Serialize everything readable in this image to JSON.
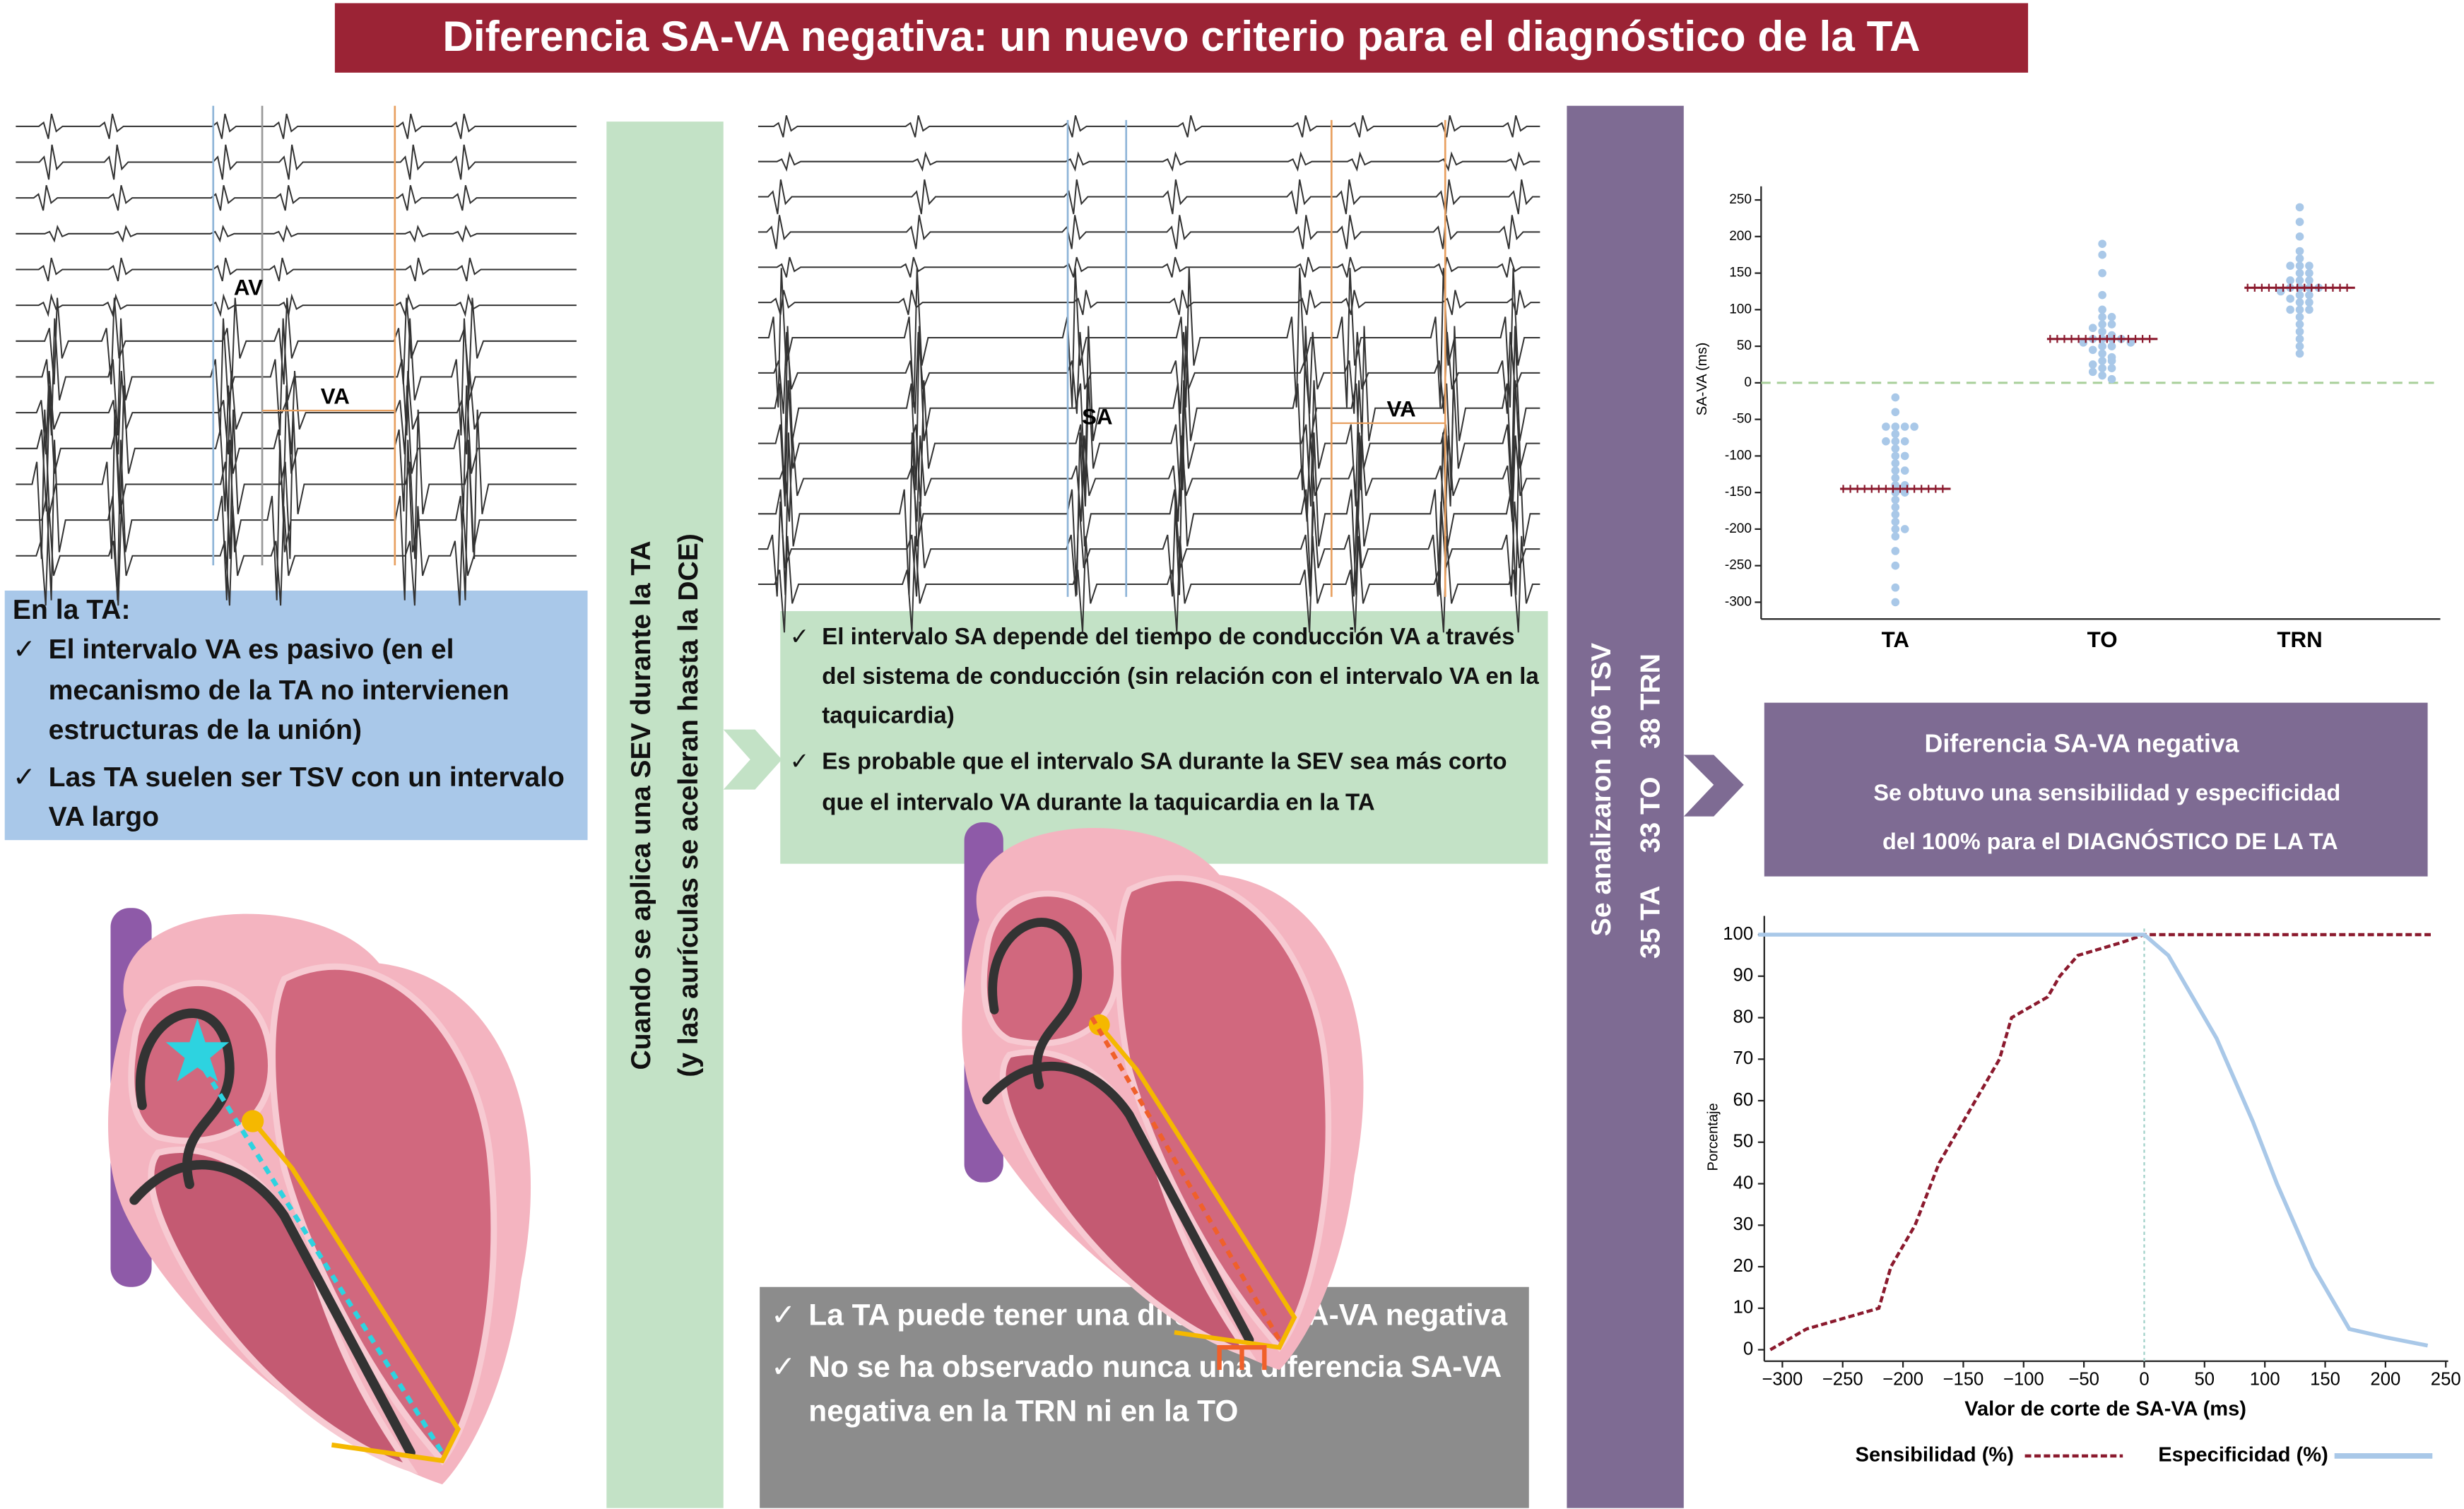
{
  "header": {
    "title": "Diferencia SA-VA negativa: un nuevo criterio para el diagnóstico de la TA"
  },
  "check": "✓",
  "ecg_left": {
    "labels": [
      "AV",
      "VA"
    ]
  },
  "ecg_middle": {
    "labels": [
      "SA",
      "VA"
    ]
  },
  "box_ta": {
    "title": "En la TA:",
    "items": [
      "El intervalo VA es pasivo (en el mecanismo de la TA no intervienen estructuras de la unión)",
      "Las TA suelen ser TSV con un intervalo VA largo"
    ]
  },
  "sev_column": {
    "lines": [
      "Cuando se aplica una SEV durante la TA",
      "(y las aurículas se aceleran hasta la DCE)"
    ]
  },
  "box_sa": {
    "items": [
      "El intervalo SA depende del tiempo de conducción VA a través del sistema de conducción (sin relación con el intervalo VA en la taquicardia)",
      "Es probable que el intervalo SA durante la SEV sea más corto que el intervalo VA durante la taquicardia en la TA"
    ]
  },
  "box_conclusion": {
    "items": [
      "La TA puede tener una diferencia SA-VA negativa",
      "No se ha observado nunca una diferencia SA-VA negativa en la TRN ni en la TO"
    ]
  },
  "study_column": {
    "title": "Se analizaron 106 TSV",
    "groups": [
      "35 TA",
      "33 TO",
      "38 TRN"
    ]
  },
  "result_box": {
    "title": "Diferencia SA-VA negativa",
    "lines": [
      "Se obtuvo una sensibilidad y especificidad",
      "del 100% para el DIAGNÓSTICO DE LA TA"
    ]
  },
  "dot_plot": {
    "type": "scatter",
    "ylabel": "SA-VA (ms)",
    "categories": [
      "TA",
      "TO",
      "TRN"
    ],
    "dot_color": "#a9c8e8",
    "center_color": "#8b1a2e",
    "refline": 0,
    "ylim": [
      -310,
      260
    ],
    "yticks": [
      -300,
      -250,
      -200,
      -150,
      -100,
      -50,
      0,
      50,
      100,
      150,
      200,
      250
    ],
    "groups": [
      {
        "center": -145,
        "values": [
          -20,
          -40,
          -60,
          -60,
          -60,
          -60,
          -70,
          -80,
          -80,
          -80,
          -90,
          -100,
          -100,
          -110,
          -120,
          -120,
          -130,
          -140,
          -140,
          -150,
          -150,
          -160,
          -170,
          -180,
          -190,
          -200,
          -200,
          -210,
          -230,
          -250,
          -280,
          -300
        ]
      },
      {
        "center": 60,
        "values": [
          190,
          175,
          150,
          120,
          100,
          90,
          90,
          80,
          80,
          75,
          70,
          65,
          60,
          60,
          60,
          60,
          55,
          55,
          50,
          50,
          45,
          40,
          35,
          30,
          30,
          25,
          20,
          20,
          15,
          10,
          5
        ]
      },
      {
        "center": 130,
        "values": [
          240,
          220,
          200,
          180,
          170,
          160,
          160,
          160,
          150,
          150,
          140,
          140,
          140,
          130,
          130,
          130,
          130,
          125,
          120,
          120,
          115,
          110,
          110,
          100,
          100,
          100,
          90,
          80,
          70,
          60,
          50,
          40
        ]
      }
    ]
  },
  "roc_chart": {
    "type": "line",
    "xlabel": "Valor de corte de SA-VA (ms)",
    "ylabel": "Porcentaje",
    "xlim": [
      -315,
      252
    ],
    "ylim": [
      -2,
      103
    ],
    "vline": 0,
    "xticks": [
      {
        "value": -300,
        "label": "−300"
      },
      {
        "value": -250,
        "label": "−250"
      },
      {
        "value": -200,
        "label": "−200"
      },
      {
        "value": -150,
        "label": "−150"
      },
      {
        "value": -100,
        "label": "−100"
      },
      {
        "value": -50,
        "label": "−50"
      },
      0,
      50,
      100,
      150,
      200,
      250
    ],
    "yticks": [
      0,
      10,
      20,
      30,
      40,
      50,
      60,
      70,
      80,
      90,
      100
    ],
    "series": [
      {
        "name": "Sensibilidad (%)",
        "color": "#8b1a2e",
        "dashed": true,
        "x": [
          -310,
          -280,
          -220,
          -210,
          -200,
          -190,
          -170,
          -150,
          -130,
          -120,
          -110,
          -80,
          -70,
          -55,
          -20,
          0,
          240
        ],
        "values": [
          0,
          5,
          10,
          20,
          25,
          30,
          45,
          55,
          65,
          70,
          80,
          85,
          90,
          95,
          98,
          100,
          100
        ]
      },
      {
        "name": "Especificidad (%)",
        "color": "#a9c8e8",
        "dashed": false,
        "x": [
          -320,
          0,
          20,
          40,
          60,
          75,
          90,
          110,
          125,
          140,
          150,
          170,
          200,
          235
        ],
        "values": [
          100,
          100,
          95,
          85,
          75,
          65,
          55,
          40,
          30,
          20,
          15,
          5,
          3,
          1
        ]
      }
    ]
  }
}
